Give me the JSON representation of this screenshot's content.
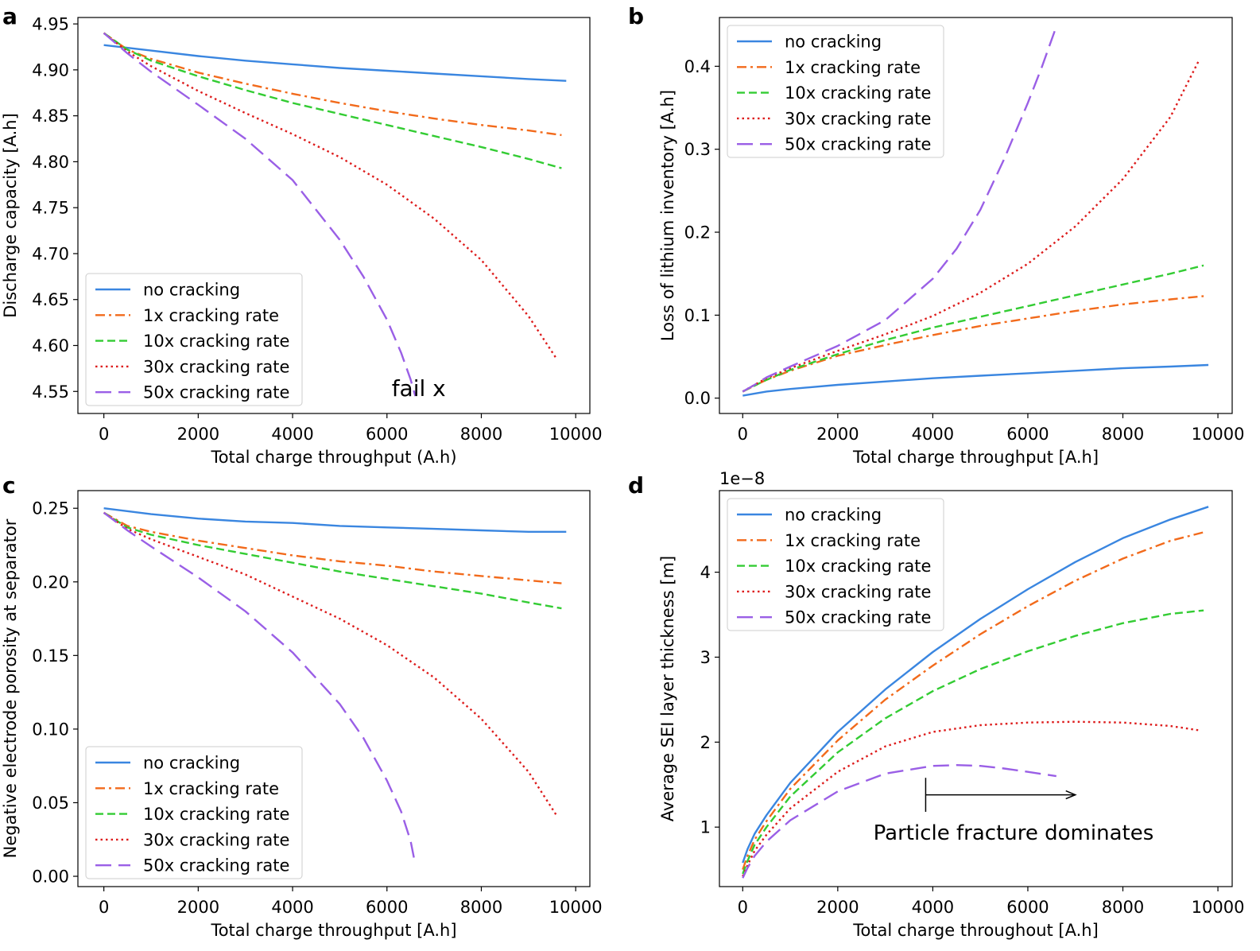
{
  "colors": {
    "no_cracking": "#3a86e0",
    "1x": "#f26a1b",
    "10x": "#33cc33",
    "30x": "#dd1c1c",
    "50x": "#9a5fe6"
  },
  "panels": [
    {
      "label": "a"
    },
    {
      "label": "b"
    },
    {
      "label": "c"
    },
    {
      "label": "d"
    }
  ],
  "chart_data": [
    {
      "panel": "a",
      "type": "line",
      "title": "",
      "xlabel": "Total charge throughput (A.h)",
      "ylabel": "Discharge capacity [A.h]",
      "xlim": [
        -550,
        10300
      ],
      "ylim": [
        4.526,
        4.957
      ],
      "xticks": [
        0,
        2000,
        4000,
        6000,
        8000,
        10000
      ],
      "xtick_labels": [
        "0",
        "2000",
        "4000",
        "6000",
        "8000",
        "10000"
      ],
      "yticks": [
        4.55,
        4.6,
        4.65,
        4.7,
        4.75,
        4.8,
        4.85,
        4.9,
        4.95
      ],
      "ytick_labels": [
        "4.55",
        "4.60",
        "4.65",
        "4.70",
        "4.75",
        "4.80",
        "4.85",
        "4.90",
        "4.95"
      ],
      "offset_label": "",
      "legend_position": "lower-left",
      "annotations": [
        {
          "text": "fail x",
          "x": 6100,
          "y": 4.545
        }
      ],
      "series": [
        {
          "name": "no cracking",
          "color": "#3a86e0",
          "style": "solid",
          "x": [
            0,
            1000,
            2000,
            3000,
            4000,
            5000,
            6000,
            7000,
            8000,
            9000,
            9800
          ],
          "y": [
            4.927,
            4.921,
            4.915,
            4.91,
            4.906,
            4.902,
            4.899,
            4.896,
            4.893,
            4.89,
            4.888
          ]
        },
        {
          "name": "1x cracking rate",
          "color": "#f26a1b",
          "style": "dashdot",
          "x": [
            0,
            500,
            1000,
            2000,
            3000,
            4000,
            5000,
            6000,
            7000,
            8000,
            9000,
            9700
          ],
          "y": [
            4.94,
            4.922,
            4.912,
            4.897,
            4.885,
            4.874,
            4.864,
            4.855,
            4.847,
            4.84,
            4.834,
            4.829
          ]
        },
        {
          "name": "10x cracking rate",
          "color": "#33cc33",
          "style": "dashed",
          "x": [
            0,
            500,
            1000,
            2000,
            3000,
            4000,
            5000,
            6000,
            7000,
            8000,
            9000,
            9700
          ],
          "y": [
            4.94,
            4.922,
            4.91,
            4.893,
            4.878,
            4.864,
            4.852,
            4.84,
            4.828,
            4.816,
            4.803,
            4.793
          ]
        },
        {
          "name": "30x cracking rate",
          "color": "#dd1c1c",
          "style": "dotted",
          "x": [
            0,
            500,
            1000,
            2000,
            3000,
            4000,
            5000,
            6000,
            7000,
            8000,
            9000,
            9600
          ],
          "y": [
            4.94,
            4.92,
            4.904,
            4.877,
            4.853,
            4.83,
            4.805,
            4.775,
            4.738,
            4.693,
            4.632,
            4.585
          ]
        },
        {
          "name": "50x cracking rate",
          "color": "#9a5fe6",
          "style": "longdash",
          "x": [
            0,
            500,
            1000,
            2000,
            3000,
            4000,
            5000,
            5500,
            6000,
            6300,
            6500,
            6600
          ],
          "y": [
            4.94,
            4.918,
            4.898,
            4.862,
            4.825,
            4.78,
            4.715,
            4.675,
            4.628,
            4.592,
            4.563,
            4.545
          ]
        }
      ]
    },
    {
      "panel": "b",
      "type": "line",
      "title": "",
      "xlabel": "Total charge throughput [A.h]",
      "ylabel": "Loss of lithium inventory [A.h]",
      "xlim": [
        -490,
        10300
      ],
      "ylim": [
        -0.0185,
        0.4588
      ],
      "xticks": [
        0,
        2000,
        4000,
        6000,
        8000,
        10000
      ],
      "xtick_labels": [
        "0",
        "2000",
        "4000",
        "6000",
        "8000",
        "10000"
      ],
      "yticks": [
        0.0,
        0.1,
        0.2,
        0.3,
        0.4
      ],
      "ytick_labels": [
        "0.0",
        "0.1",
        "0.2",
        "0.3",
        "0.4"
      ],
      "offset_label": "",
      "legend_position": "upper-left",
      "annotations": [],
      "series": [
        {
          "name": "no cracking",
          "color": "#3a86e0",
          "style": "solid",
          "x": [
            0,
            500,
            1000,
            2000,
            3000,
            4000,
            5000,
            6000,
            7000,
            8000,
            9000,
            9800
          ],
          "y": [
            0.003,
            0.008,
            0.011,
            0.016,
            0.02,
            0.024,
            0.027,
            0.03,
            0.033,
            0.036,
            0.038,
            0.04
          ]
        },
        {
          "name": "1x cracking rate",
          "color": "#f26a1b",
          "style": "dashdot",
          "x": [
            0,
            250,
            500,
            1000,
            2000,
            3000,
            4000,
            5000,
            6000,
            7000,
            8000,
            9000,
            9700
          ],
          "y": [
            0.008,
            0.015,
            0.022,
            0.033,
            0.051,
            0.064,
            0.076,
            0.087,
            0.096,
            0.105,
            0.113,
            0.119,
            0.123
          ]
        },
        {
          "name": "10x cracking rate",
          "color": "#33cc33",
          "style": "dashed",
          "x": [
            0,
            250,
            500,
            1000,
            2000,
            3000,
            4000,
            5000,
            6000,
            7000,
            8000,
            9000,
            9700
          ],
          "y": [
            0.008,
            0.015,
            0.022,
            0.034,
            0.053,
            0.07,
            0.085,
            0.098,
            0.111,
            0.124,
            0.137,
            0.15,
            0.16
          ]
        },
        {
          "name": "30x cracking rate",
          "color": "#dd1c1c",
          "style": "dotted",
          "x": [
            0,
            250,
            500,
            1000,
            2000,
            3000,
            4000,
            5000,
            6000,
            7000,
            8000,
            9000,
            9600
          ],
          "y": [
            0.008,
            0.016,
            0.024,
            0.036,
            0.057,
            0.077,
            0.099,
            0.127,
            0.162,
            0.207,
            0.264,
            0.339,
            0.407
          ]
        },
        {
          "name": "50x cracking rate",
          "color": "#9a5fe6",
          "style": "longdash",
          "x": [
            0,
            250,
            500,
            1000,
            2000,
            3000,
            4000,
            4500,
            5000,
            5500,
            6000,
            6300,
            6600
          ],
          "y": [
            0.008,
            0.016,
            0.025,
            0.038,
            0.063,
            0.094,
            0.144,
            0.18,
            0.227,
            0.288,
            0.356,
            0.4,
            0.448
          ]
        }
      ]
    },
    {
      "panel": "c",
      "type": "line",
      "title": "",
      "xlabel": "Total charge throughput [A.h]",
      "ylabel": "Negative electrode porosity at separator",
      "xlim": [
        -550,
        10300
      ],
      "ylim": [
        -0.007,
        0.262
      ],
      "xticks": [
        0,
        2000,
        4000,
        6000,
        8000,
        10000
      ],
      "xtick_labels": [
        "0",
        "2000",
        "4000",
        "6000",
        "8000",
        "10000"
      ],
      "yticks": [
        0.0,
        0.05,
        0.1,
        0.15,
        0.2,
        0.25
      ],
      "ytick_labels": [
        "0.00",
        "0.05",
        "0.10",
        "0.15",
        "0.20",
        "0.25"
      ],
      "offset_label": "",
      "legend_position": "lower-left",
      "annotations": [],
      "series": [
        {
          "name": "no cracking",
          "color": "#3a86e0",
          "style": "solid",
          "x": [
            0,
            1000,
            2000,
            3000,
            4000,
            5000,
            6000,
            7000,
            8000,
            9000,
            9800
          ],
          "y": [
            0.25,
            0.246,
            0.243,
            0.241,
            0.24,
            0.238,
            0.237,
            0.236,
            0.235,
            0.234,
            0.234
          ]
        },
        {
          "name": "1x cracking rate",
          "color": "#f26a1b",
          "style": "dashdot",
          "x": [
            0,
            500,
            1000,
            2000,
            3000,
            4000,
            5000,
            6000,
            7000,
            8000,
            9000,
            9700
          ],
          "y": [
            0.247,
            0.238,
            0.234,
            0.228,
            0.223,
            0.218,
            0.214,
            0.211,
            0.207,
            0.204,
            0.201,
            0.199
          ]
        },
        {
          "name": "10x cracking rate",
          "color": "#33cc33",
          "style": "dashed",
          "x": [
            0,
            500,
            1000,
            2000,
            3000,
            4000,
            5000,
            6000,
            7000,
            8000,
            9000,
            9700
          ],
          "y": [
            0.247,
            0.237,
            0.232,
            0.225,
            0.219,
            0.213,
            0.207,
            0.202,
            0.197,
            0.192,
            0.186,
            0.182
          ]
        },
        {
          "name": "30x cracking rate",
          "color": "#dd1c1c",
          "style": "dotted",
          "x": [
            0,
            500,
            1000,
            2000,
            3000,
            4000,
            5000,
            6000,
            7000,
            8000,
            9000,
            9600
          ],
          "y": [
            0.247,
            0.236,
            0.229,
            0.217,
            0.205,
            0.19,
            0.175,
            0.157,
            0.135,
            0.107,
            0.071,
            0.041
          ]
        },
        {
          "name": "50x cracking rate",
          "color": "#9a5fe6",
          "style": "longdash",
          "x": [
            0,
            500,
            1000,
            2000,
            3000,
            4000,
            5000,
            5500,
            6000,
            6300,
            6500,
            6600
          ],
          "y": [
            0.247,
            0.235,
            0.224,
            0.203,
            0.18,
            0.152,
            0.117,
            0.094,
            0.065,
            0.044,
            0.024,
            0.008
          ]
        }
      ]
    },
    {
      "panel": "d",
      "type": "line",
      "title": "",
      "xlabel": "Total charge throughout [A.h]",
      "ylabel": "Average SEI layer thickness [m]",
      "xlim": [
        -490,
        10300
      ],
      "ylim": [
        0.3,
        4.96
      ],
      "xticks": [
        0,
        2000,
        4000,
        6000,
        8000,
        10000
      ],
      "xtick_labels": [
        "0",
        "2000",
        "4000",
        "6000",
        "8000",
        "10000"
      ],
      "yticks": [
        1,
        2,
        3,
        4
      ],
      "ytick_labels": [
        "1",
        "2",
        "3",
        "4"
      ],
      "offset_label": "1e−8",
      "legend_position": "upper-left",
      "annotations": [
        {
          "text": "Particle fracture dominates",
          "x": 2750,
          "y": 0.85
        }
      ],
      "arrow": {
        "x_start": 3850,
        "x_end": 7000,
        "y": 1.38,
        "bar_y": [
          1.18,
          1.58
        ]
      },
      "series": [
        {
          "name": "no cracking",
          "color": "#3a86e0",
          "style": "solid",
          "x": [
            0,
            100,
            250,
            500,
            1000,
            2000,
            3000,
            4000,
            5000,
            6000,
            7000,
            8000,
            9000,
            9800
          ],
          "y": [
            0.58,
            0.74,
            0.92,
            1.14,
            1.52,
            2.12,
            2.62,
            3.06,
            3.45,
            3.8,
            4.12,
            4.4,
            4.62,
            4.77
          ]
        },
        {
          "name": "1x cracking rate",
          "color": "#f26a1b",
          "style": "dashdot",
          "x": [
            0,
            100,
            250,
            500,
            1000,
            2000,
            3000,
            4000,
            5000,
            6000,
            7000,
            8000,
            9000,
            9700
          ],
          "y": [
            0.5,
            0.66,
            0.85,
            1.07,
            1.45,
            2.02,
            2.5,
            2.9,
            3.27,
            3.6,
            3.9,
            4.16,
            4.37,
            4.47
          ]
        },
        {
          "name": "10x cracking rate",
          "color": "#33cc33",
          "style": "dashed",
          "x": [
            0,
            100,
            250,
            500,
            1000,
            2000,
            3000,
            4000,
            5000,
            6000,
            7000,
            8000,
            9000,
            9700
          ],
          "y": [
            0.45,
            0.6,
            0.79,
            1.0,
            1.36,
            1.88,
            2.28,
            2.6,
            2.86,
            3.07,
            3.25,
            3.4,
            3.51,
            3.55
          ]
        },
        {
          "name": "30x cracking rate",
          "color": "#dd1c1c",
          "style": "dotted",
          "x": [
            0,
            100,
            250,
            500,
            1000,
            2000,
            3000,
            4000,
            5000,
            6000,
            7000,
            8000,
            9000,
            9600
          ],
          "y": [
            0.42,
            0.55,
            0.72,
            0.91,
            1.22,
            1.65,
            1.95,
            2.12,
            2.2,
            2.23,
            2.24,
            2.23,
            2.19,
            2.14
          ]
        },
        {
          "name": "50x cracking rate",
          "color": "#9a5fe6",
          "style": "longdash",
          "x": [
            0,
            100,
            250,
            500,
            1000,
            2000,
            3000,
            4000,
            4500,
            5000,
            5500,
            6000,
            6600
          ],
          "y": [
            0.4,
            0.52,
            0.66,
            0.83,
            1.08,
            1.42,
            1.63,
            1.72,
            1.73,
            1.72,
            1.69,
            1.65,
            1.6
          ]
        }
      ]
    }
  ]
}
